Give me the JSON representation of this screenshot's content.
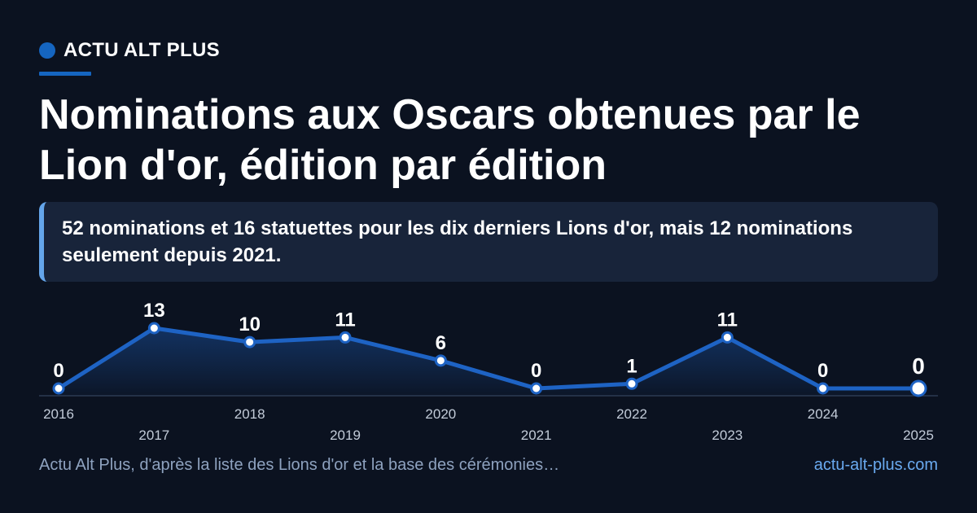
{
  "brand": {
    "name": "ACTU ALT PLUS"
  },
  "headline": "Nominations aux Oscars obtenues par le Lion d'or, édition par édition",
  "summary": "52 nominations et 16 statuettes pour les dix derniers Lions d'or, mais 12 nominations seulement depuis 2021.",
  "footer": {
    "source": "Actu Alt Plus, d'après la liste des Lions d'or et la base des cérémonies…",
    "site": "actu-alt-plus.com"
  },
  "colors": {
    "background": "#0b1220",
    "accent": "#1565c0",
    "panel": "#18243a",
    "line": "#1e63c4"
  },
  "chart_data": {
    "type": "area",
    "categories": [
      "2016",
      "2017",
      "2018",
      "2019",
      "2020",
      "2021",
      "2022",
      "2023",
      "2024",
      "2025"
    ],
    "series": [
      {
        "values": [
          0,
          13,
          10,
          11,
          6,
          0,
          1,
          11,
          0,
          0
        ]
      }
    ],
    "value_labels": [
      "0",
      "13",
      "10",
      "11",
      "6",
      "0",
      "1",
      "11",
      "0",
      "0"
    ],
    "ylim": [
      0,
      13
    ],
    "grid": false,
    "highlight_last": true
  }
}
